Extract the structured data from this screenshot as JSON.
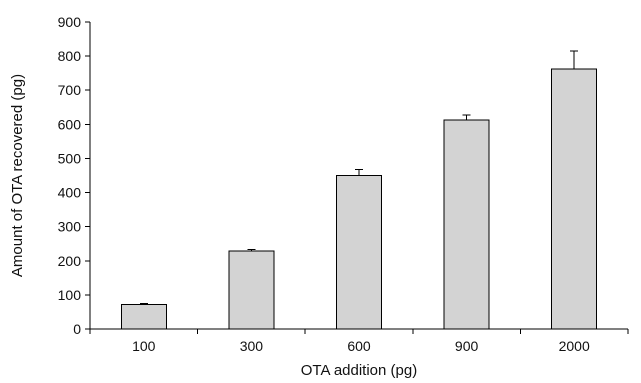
{
  "chart_data": {
    "type": "bar",
    "title": "",
    "xlabel": "OTA addition (pg)",
    "ylabel": "Amount of OTA recovered (pg)",
    "categories": [
      "100",
      "300",
      "600",
      "900",
      "2000"
    ],
    "values": [
      72,
      228,
      450,
      612,
      762
    ],
    "error_upper": [
      3,
      5,
      18,
      15,
      53
    ],
    "ylim": [
      0,
      900
    ],
    "yticks": [
      0,
      100,
      200,
      300,
      400,
      500,
      600,
      700,
      800,
      900
    ],
    "grid": false,
    "legend": "none",
    "colors": {
      "bar_fill": "#d3d3d3",
      "bar_stroke": "#000000",
      "axis": "#000000"
    }
  }
}
